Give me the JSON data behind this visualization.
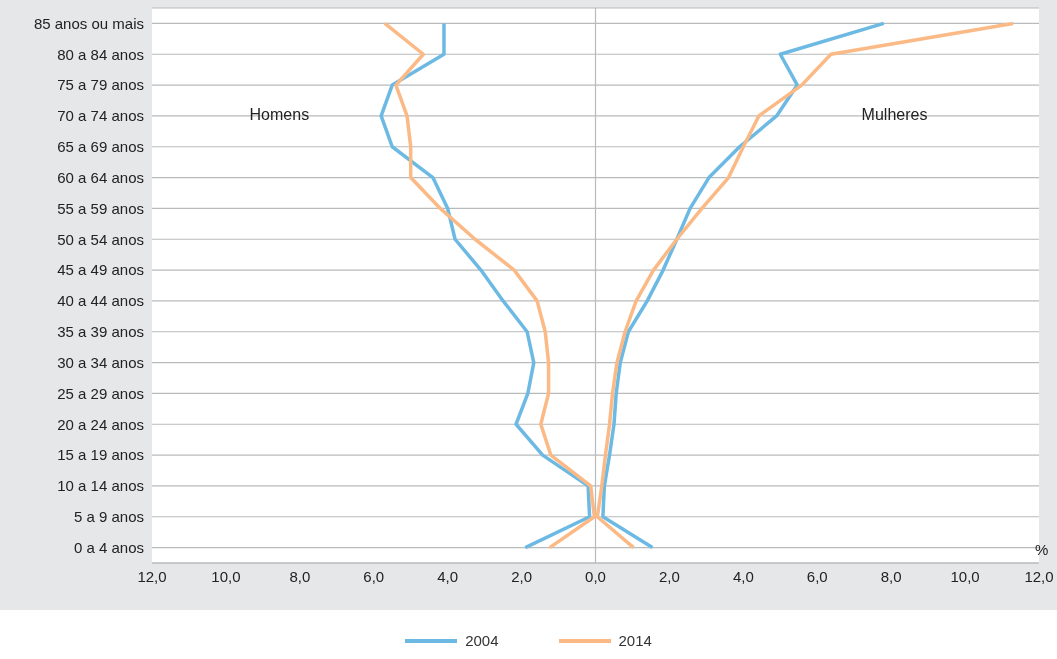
{
  "chart_data": {
    "type": "line",
    "orientation": "horizontal",
    "xlabel": "%",
    "annotations": [
      "Homens",
      "Mulheres"
    ],
    "categories": [
      "85 anos ou mais",
      "80 a 84 anos",
      "75 a 79 anos",
      "70 a 74 anos",
      "65 a 69 anos",
      "60 a 64 anos",
      "55 a 59 anos",
      "50 a 54 anos",
      "45 a 49 anos",
      "40 a 44 anos",
      "35 a 39 anos",
      "30 a 34 anos",
      "25 a 29 anos",
      "20 a 24 anos",
      "15 a 19 anos",
      "10 a 14 anos",
      "5 a 9 anos",
      "0 a 4 anos"
    ],
    "series": [
      {
        "name": "2004",
        "color": "#6cb9e4",
        "values": [
          -4.1,
          -4.1,
          -5.5,
          -5.8,
          -5.5,
          -4.4,
          -4.0,
          -3.8,
          -3.1,
          -2.5,
          -1.85,
          -1.67,
          -1.83,
          -2.15,
          -1.43,
          -0.2,
          -0.16,
          -1.9
        ]
      },
      {
        "color": "#6cb9e4",
        "values": [
          7.8,
          5.0,
          5.46,
          4.9,
          3.9,
          3.07,
          2.56,
          2.2,
          1.83,
          1.4,
          0.89,
          0.67,
          0.56,
          0.5,
          0.38,
          0.24,
          0.2,
          1.54
        ]
      },
      {
        "name": "2014",
        "color": "#fbb985",
        "values": [
          -5.7,
          -4.66,
          -5.4,
          -5.1,
          -5.0,
          -5.0,
          -4.2,
          -3.26,
          -2.2,
          -1.58,
          -1.36,
          -1.27,
          -1.27,
          -1.48,
          -1.21,
          -0.13,
          -0.03,
          -1.24
        ]
      },
      {
        "color": "#fbb985",
        "values": [
          11.3,
          6.37,
          5.58,
          4.42,
          4.0,
          3.6,
          2.88,
          2.2,
          1.57,
          1.1,
          0.8,
          0.58,
          0.46,
          0.38,
          0.27,
          0.17,
          0.05,
          1.03
        ]
      }
    ],
    "xlim": [
      -12,
      12
    ],
    "xticks": [
      {
        "value": -12,
        "label": "12,0"
      },
      {
        "value": -10,
        "label": "10,0"
      },
      {
        "value": -8,
        "label": "8,0"
      },
      {
        "value": -6,
        "label": "6,0"
      },
      {
        "value": -4,
        "label": "4,0"
      },
      {
        "value": -2,
        "label": "2,0"
      },
      {
        "value": 0,
        "label": "0,0"
      },
      {
        "value": 2,
        "label": "2,0"
      },
      {
        "value": 4,
        "label": "4,0"
      },
      {
        "value": 6,
        "label": "6,0"
      },
      {
        "value": 8,
        "label": "8,0"
      },
      {
        "value": 10,
        "label": "10,0"
      },
      {
        "value": 12,
        "label": "12,0"
      }
    ],
    "ref_lines": [
      {
        "axis": "x",
        "value": 0,
        "color": "#b8babc"
      }
    ],
    "grid": "y",
    "legend": "bottom",
    "marker": "none",
    "line_style": "solid"
  }
}
